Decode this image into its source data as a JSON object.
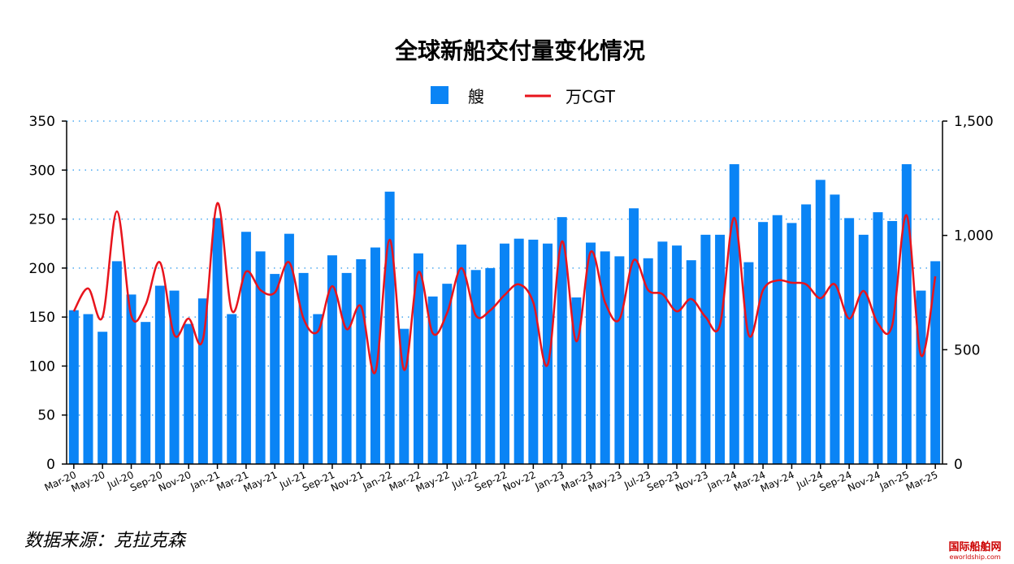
{
  "chart_data": {
    "type": "bar_line",
    "title": "全球新船交付量变化情况",
    "source": "数据来源：克拉克森",
    "watermark": [
      "国际船舶网",
      "eworldship.com"
    ],
    "categories": [
      "Mar-20",
      null,
      "May-20",
      null,
      "Jul-20",
      null,
      "Sep-20",
      null,
      "Nov-20",
      null,
      "Jan-21",
      null,
      "Mar-21",
      null,
      "May-21",
      null,
      "Jul-21",
      null,
      "Sep-21",
      null,
      "Nov-21",
      null,
      "Jan-22",
      null,
      "Mar-22",
      null,
      "May-22",
      null,
      "Jul-22",
      null,
      "Sep-22",
      null,
      "Nov-22",
      null,
      "Jan-23",
      null,
      "Mar-23",
      null,
      "May-23",
      null,
      "Jul-23",
      null,
      "Sep-23",
      null,
      "Nov-23",
      null,
      "Jan-24",
      null,
      "Mar-24",
      null,
      "May-24",
      null,
      "Jul-24",
      null,
      "Sep-24",
      null,
      "Nov-24",
      null,
      "Jan-25",
      null,
      "Mar-25"
    ],
    "series": [
      {
        "name": "艘",
        "type": "bar",
        "color": "#0a84f5",
        "values": [
          157,
          153,
          135,
          207,
          173,
          145,
          182,
          177,
          143,
          169,
          251,
          153,
          237,
          217,
          194,
          235,
          195,
          153,
          213,
          195,
          209,
          221,
          278,
          138,
          215,
          171,
          184,
          224,
          198,
          200,
          225,
          230,
          229,
          225,
          252,
          170,
          226,
          217,
          212,
          261,
          210,
          227,
          223,
          208,
          234,
          234,
          306,
          206,
          247,
          254,
          246,
          265,
          290,
          275,
          251,
          234,
          257,
          248,
          306,
          177,
          207
        ]
      },
      {
        "name": "万CGT",
        "type": "line",
        "axis": "y2",
        "color": "#e8141c",
        "values": [
          668,
          768,
          643,
          1105,
          650,
          697,
          882,
          565,
          636,
          547,
          1141,
          672,
          842,
          761,
          750,
          882,
          636,
          580,
          778,
          590,
          690,
          402,
          981,
          412,
          839,
          572,
          661,
          857,
          650,
          672,
          739,
          786,
          707,
          434,
          974,
          537,
          928,
          707,
          633,
          892,
          761,
          743,
          668,
          722,
          643,
          608,
          1077,
          565,
          761,
          803,
          793,
          786,
          725,
          786,
          636,
          757,
          615,
          608,
          1088,
          476,
          821
        ]
      }
    ],
    "ylim": [
      0,
      350
    ],
    "yticks": [
      0,
      50,
      100,
      150,
      200,
      250,
      300,
      350
    ],
    "y2lim": [
      0,
      1500
    ],
    "y2ticks": [
      0,
      500,
      {
        "value": 1000,
        "label": "1,000"
      },
      {
        "value": 1500,
        "label": "1,500"
      }
    ],
    "grid": true
  }
}
